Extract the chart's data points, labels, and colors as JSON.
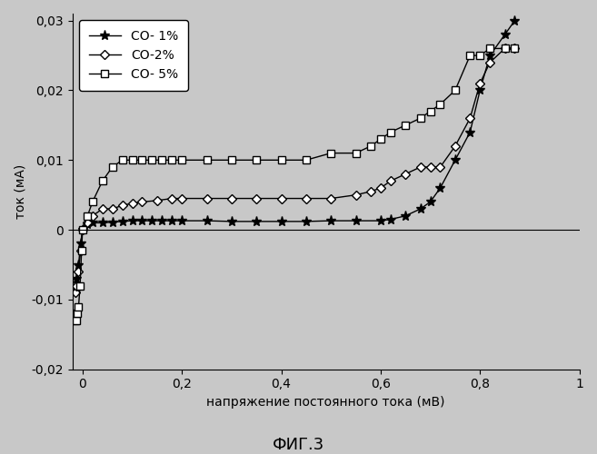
{
  "title": "",
  "xlabel": "напряжение постоянного тока (мВ)",
  "ylabel": "ток (мА)",
  "caption": "ФИГ.3",
  "xlim": [
    -0.02,
    1.0
  ],
  "ylim": [
    -0.02,
    0.031
  ],
  "background_color": "#c8c8c8",
  "legend": [
    "CO- 1%",
    "CO-2%",
    "CO- 5%"
  ],
  "co1_x": [
    -0.015,
    -0.012,
    -0.008,
    -0.004,
    0.0,
    0.01,
    0.02,
    0.04,
    0.06,
    0.08,
    0.1,
    0.12,
    0.14,
    0.16,
    0.18,
    0.2,
    0.25,
    0.3,
    0.35,
    0.4,
    0.45,
    0.5,
    0.55,
    0.6,
    0.62,
    0.65,
    0.68,
    0.7,
    0.72,
    0.75,
    0.78,
    0.8,
    0.82,
    0.85,
    0.87
  ],
  "co1_y": [
    -0.008,
    -0.007,
    -0.005,
    -0.002,
    0.0,
    0.0008,
    0.001,
    0.001,
    0.0011,
    0.0012,
    0.0013,
    0.0013,
    0.0013,
    0.0013,
    0.0013,
    0.0013,
    0.0013,
    0.0012,
    0.0012,
    0.0012,
    0.0012,
    0.0013,
    0.0013,
    0.0013,
    0.0015,
    0.002,
    0.003,
    0.004,
    0.006,
    0.01,
    0.014,
    0.02,
    0.025,
    0.028,
    0.03
  ],
  "co2_x": [
    -0.015,
    -0.012,
    -0.008,
    -0.004,
    0.0,
    0.01,
    0.02,
    0.04,
    0.06,
    0.08,
    0.1,
    0.12,
    0.15,
    0.18,
    0.2,
    0.25,
    0.3,
    0.35,
    0.4,
    0.45,
    0.5,
    0.55,
    0.58,
    0.6,
    0.62,
    0.65,
    0.68,
    0.7,
    0.72,
    0.75,
    0.78,
    0.8,
    0.82,
    0.85,
    0.87
  ],
  "co2_y": [
    -0.009,
    -0.008,
    -0.006,
    -0.003,
    0.0,
    0.001,
    0.002,
    0.003,
    0.003,
    0.0035,
    0.0038,
    0.004,
    0.0042,
    0.0045,
    0.0045,
    0.0045,
    0.0045,
    0.0045,
    0.0045,
    0.0045,
    0.0045,
    0.005,
    0.0055,
    0.006,
    0.007,
    0.008,
    0.009,
    0.009,
    0.009,
    0.012,
    0.016,
    0.021,
    0.024,
    0.026,
    0.026
  ],
  "co5_x": [
    -0.015,
    -0.012,
    -0.01,
    -0.008,
    -0.005,
    -0.002,
    0.0,
    0.01,
    0.02,
    0.04,
    0.06,
    0.08,
    0.1,
    0.12,
    0.14,
    0.16,
    0.18,
    0.2,
    0.25,
    0.3,
    0.35,
    0.4,
    0.45,
    0.5,
    0.55,
    0.58,
    0.6,
    0.62,
    0.65,
    0.68,
    0.7,
    0.72,
    0.75,
    0.78,
    0.8,
    0.82,
    0.85,
    0.87
  ],
  "co5_y": [
    -0.013,
    -0.013,
    -0.012,
    -0.011,
    -0.008,
    -0.003,
    0.0,
    0.002,
    0.004,
    0.007,
    0.009,
    0.01,
    0.01,
    0.01,
    0.01,
    0.01,
    0.01,
    0.01,
    0.01,
    0.01,
    0.01,
    0.01,
    0.01,
    0.011,
    0.011,
    0.012,
    0.013,
    0.014,
    0.015,
    0.016,
    0.017,
    0.018,
    0.02,
    0.025,
    0.025,
    0.026,
    0.026,
    0.026
  ],
  "yticks": [
    -0.02,
    -0.01,
    0.0,
    0.01,
    0.02,
    0.03
  ],
  "xticks": [
    0.0,
    0.2,
    0.4,
    0.6,
    0.8,
    1.0
  ]
}
